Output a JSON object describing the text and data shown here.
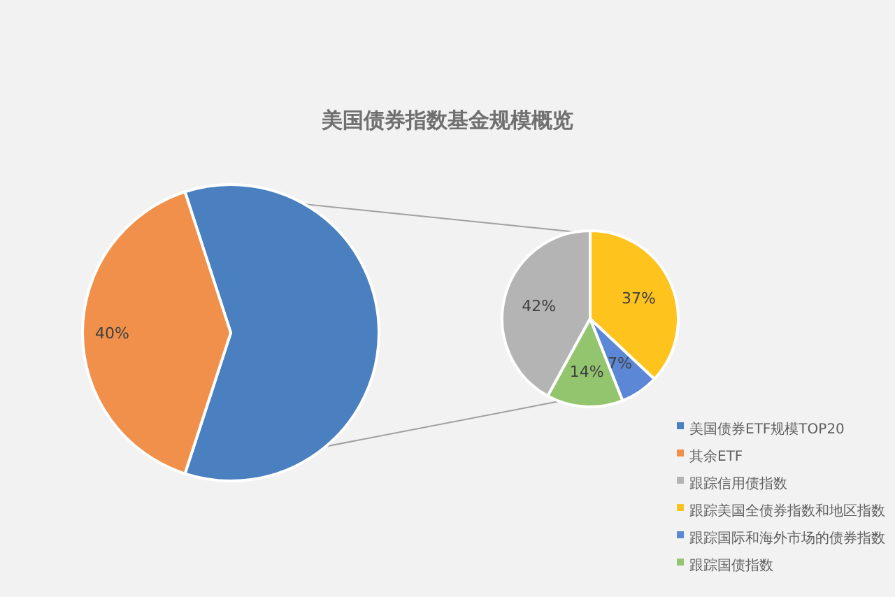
{
  "chart_data": [
    {
      "type": "pie",
      "title": "美国债券指数基金规模概览",
      "categories": [
        "美国债券ETF规模TOP20",
        "其余ETF"
      ],
      "values": [
        60,
        40
      ],
      "colors": [
        "#4a80c0",
        "#f0904a"
      ],
      "value_labels": [
        null,
        "40%"
      ],
      "legend": "bottom right"
    },
    {
      "type": "pie",
      "categories": [
        "跟踪信用债指数",
        "跟踪美国全债券指数和地区指数",
        "跟踪国际和海外市场的债券指数",
        "跟踪国债指数"
      ],
      "values": [
        42,
        37,
        7,
        14
      ],
      "colors": [
        "#b4b4b4",
        "#ffc31e",
        "#5b87d6",
        "#93c46e"
      ],
      "value_labels": [
        "42%",
        "37%",
        "7%",
        "14%"
      ],
      "legend": "bottom right"
    }
  ]
}
